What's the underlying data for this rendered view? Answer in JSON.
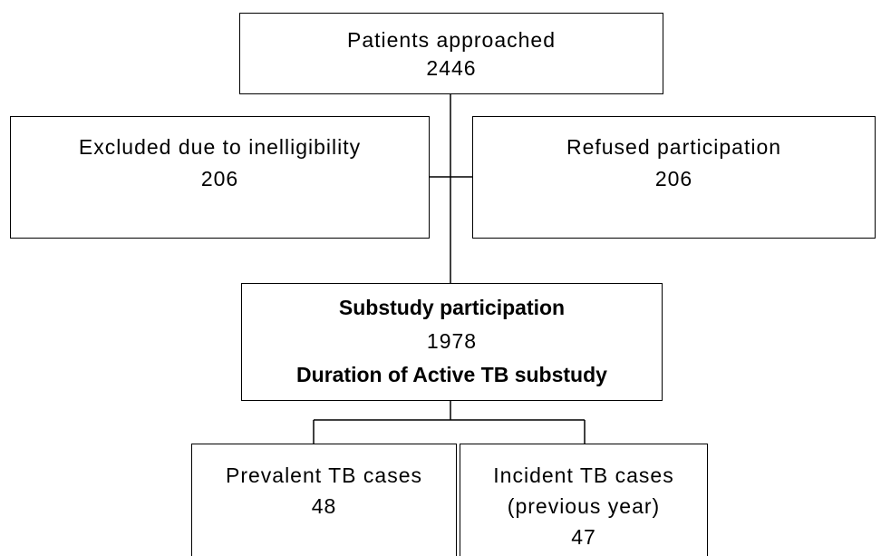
{
  "nodes": [
    {
      "lines": [
        "Patients approached",
        "2446"
      ]
    },
    {
      "lines": [
        "Excluded due to inelligibility",
        "206"
      ]
    },
    {
      "lines": [
        "Refused participation",
        "206"
      ]
    },
    {
      "lines": [
        "Substudy participation",
        "1978",
        "Duration of Active TB substudy"
      ]
    },
    {
      "lines": [
        "Prevalent TB cases",
        "48"
      ]
    },
    {
      "lines": [
        "Incident TB cases",
        "(previous year)",
        "47"
      ]
    }
  ]
}
